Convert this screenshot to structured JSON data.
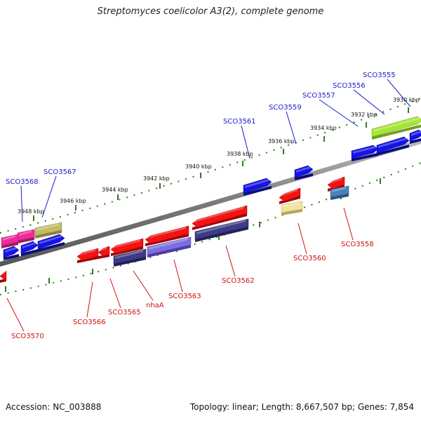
{
  "title": "Streptomyces coelicolor A3(2), complete genome",
  "footer": {
    "accession": "Accession: NC_003888",
    "summary": "Topology: linear; Length: 8,667,507 bp; Genes: 7,854"
  },
  "colors": {
    "backbone": "#8a8a8a",
    "tick": "#2e7d1e",
    "label_forward": "#1a1acc",
    "label_reverse": "#cc1111"
  },
  "kbp_labels": [
    "3930 kbp",
    "3932 kbp",
    "3934 kbp",
    "3936 kbp",
    "3938 kbp",
    "3940 kbp",
    "3942 kbp",
    "3944 kbp",
    "3946 kbp",
    "3948 kbp"
  ],
  "forward_gene_labels": [
    "SCO3555",
    "SCO3556",
    "SCO3557",
    "SCO3559",
    "SCO3561",
    "SCO3567",
    "SCO3568"
  ],
  "reverse_gene_labels": [
    "SCO3558",
    "SCO3560",
    "SCO3562",
    "SCO3563",
    "nhaA",
    "SCO3565",
    "SCO3566",
    "SCO3570"
  ]
}
